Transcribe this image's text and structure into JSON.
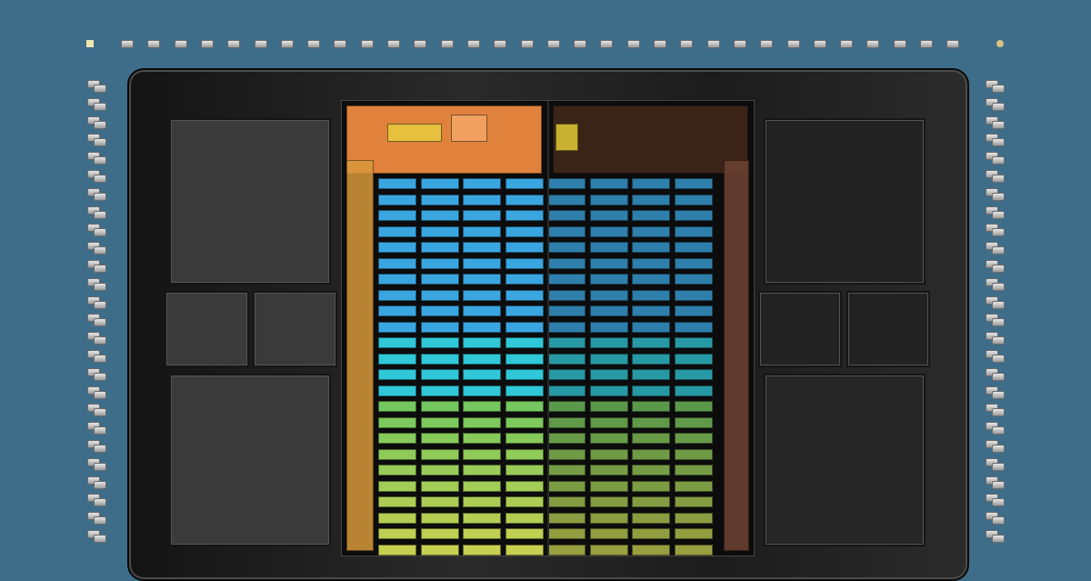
{
  "colors": {
    "background": "#3e6d8a",
    "package": "#1e1e1e",
    "block": "#3a3a3a",
    "top_logic": "#e0823c",
    "memory_blue": "#3aa6e0",
    "memory_cyan": "#30c8d8",
    "memory_green": "#6fc860",
    "memory_yellow": "#c8d050",
    "side_logic": "#d8983c",
    "pad": "#cfcfcf"
  }
}
